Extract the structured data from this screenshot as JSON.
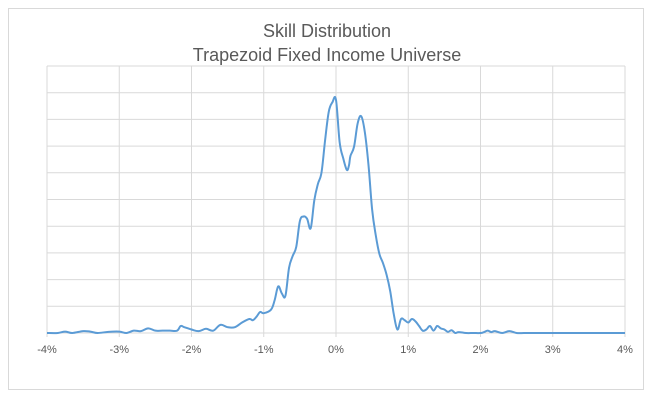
{
  "chart_data": {
    "type": "line",
    "title": "Skill Distribution",
    "subtitle": "Trapezoid Fixed Income Universe",
    "xlabel": "",
    "ylabel": "",
    "xlim": [
      -0.04,
      0.04
    ],
    "ylim": [
      0,
      1
    ],
    "x_ticks": [
      -0.04,
      -0.03,
      -0.02,
      -0.01,
      0,
      0.01,
      0.02,
      0.03,
      0.04
    ],
    "x_tick_labels": [
      "-4%",
      "-3%",
      "-2%",
      "-1%",
      "0%",
      "1%",
      "2%",
      "3%",
      "4%"
    ],
    "y_tick_labels_shown": false,
    "grid": true,
    "legend": "none",
    "series": [
      {
        "color": "#5b9bd5",
        "x": [
          -0.04,
          -0.0385,
          -0.0375,
          -0.0365,
          -0.035,
          -0.034,
          -0.033,
          -0.0315,
          -0.03,
          -0.029,
          -0.028,
          -0.027,
          -0.026,
          -0.025,
          -0.024,
          -0.023,
          -0.022,
          -0.0215,
          -0.021,
          -0.02,
          -0.019,
          -0.018,
          -0.017,
          -0.016,
          -0.015,
          -0.014,
          -0.013,
          -0.012,
          -0.0115,
          -0.011,
          -0.0105,
          -0.01,
          -0.009,
          -0.0085,
          -0.008,
          -0.0075,
          -0.007,
          -0.0065,
          -0.006,
          -0.0055,
          -0.005,
          -0.0045,
          -0.004,
          -0.0035,
          -0.003,
          -0.0025,
          -0.002,
          -0.0015,
          -0.001,
          -0.0005,
          0,
          0.0005,
          0.001,
          0.0015,
          0.0018,
          0.002,
          0.0025,
          0.003,
          0.0035,
          0.004,
          0.0045,
          0.005,
          0.0055,
          0.006,
          0.0065,
          0.007,
          0.0075,
          0.008,
          0.0085,
          0.009,
          0.0095,
          0.01,
          0.0105,
          0.011,
          0.0115,
          0.012,
          0.0125,
          0.013,
          0.0135,
          0.014,
          0.0145,
          0.015,
          0.0155,
          0.016,
          0.0165,
          0.017,
          0.018,
          0.019,
          0.02,
          0.0205,
          0.021,
          0.0215,
          0.022,
          0.023,
          0.024,
          0.025,
          0.026,
          0.027,
          0.028,
          0.03,
          0.032,
          0.035,
          0.04
        ],
        "y": [
          0.0,
          0.0,
          0.006,
          0.0,
          0.008,
          0.006,
          0.0,
          0.005,
          0.006,
          0.0,
          0.01,
          0.008,
          0.02,
          0.01,
          0.01,
          0.01,
          0.01,
          0.03,
          0.025,
          0.015,
          0.008,
          0.018,
          0.01,
          0.035,
          0.025,
          0.025,
          0.045,
          0.06,
          0.055,
          0.07,
          0.09,
          0.085,
          0.1,
          0.14,
          0.2,
          0.17,
          0.16,
          0.28,
          0.33,
          0.37,
          0.48,
          0.5,
          0.49,
          0.45,
          0.57,
          0.64,
          0.69,
          0.83,
          0.95,
          0.99,
          1.0,
          0.82,
          0.75,
          0.7,
          0.72,
          0.76,
          0.8,
          0.9,
          0.93,
          0.86,
          0.72,
          0.53,
          0.42,
          0.34,
          0.3,
          0.25,
          0.18,
          0.08,
          0.015,
          0.06,
          0.055,
          0.045,
          0.06,
          0.05,
          0.03,
          0.01,
          0.015,
          0.03,
          0.01,
          0.03,
          0.02,
          0.015,
          0.005,
          0.012,
          0.0,
          0.004,
          0.0,
          0.0,
          0.0,
          0.004,
          0.01,
          0.004,
          0.008,
          0.0,
          0.008,
          0.0,
          0.0,
          0.0,
          0.0,
          0.0,
          0.0,
          0.0,
          0.0
        ]
      }
    ]
  }
}
